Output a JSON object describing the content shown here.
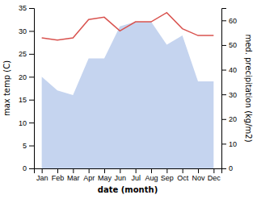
{
  "chart_data": {
    "type": "line",
    "categories": [
      "Jan",
      "Feb",
      "Mar",
      "Apr",
      "May",
      "Jun",
      "Jul",
      "Aug",
      "Sep",
      "Oct",
      "Nov",
      "Dec"
    ],
    "series": [
      {
        "type": "area",
        "color": "#c5d4ef",
        "axis": "y",
        "values": [
          20,
          17,
          16,
          24,
          24,
          31,
          32,
          32,
          27,
          29,
          19,
          19
        ]
      },
      {
        "type": "line",
        "color": "#d9534f",
        "axis": "y",
        "values": [
          28.5,
          28.0,
          28.5,
          32.5,
          33.0,
          30.0,
          32.0,
          32.0,
          34.0,
          30.5,
          29.0,
          29.0
        ]
      }
    ],
    "xlabel": "date (month)",
    "ylabel": "max temp (C)",
    "y2label": "med. precipitation (kg/m2)",
    "ylim": [
      0,
      35
    ],
    "yticks": [
      0,
      5,
      10,
      15,
      20,
      25,
      30,
      35
    ],
    "y2lim": [
      0,
      65
    ],
    "y2ticks": [
      0,
      10,
      20,
      30,
      40,
      50,
      60
    ],
    "grid": false
  }
}
